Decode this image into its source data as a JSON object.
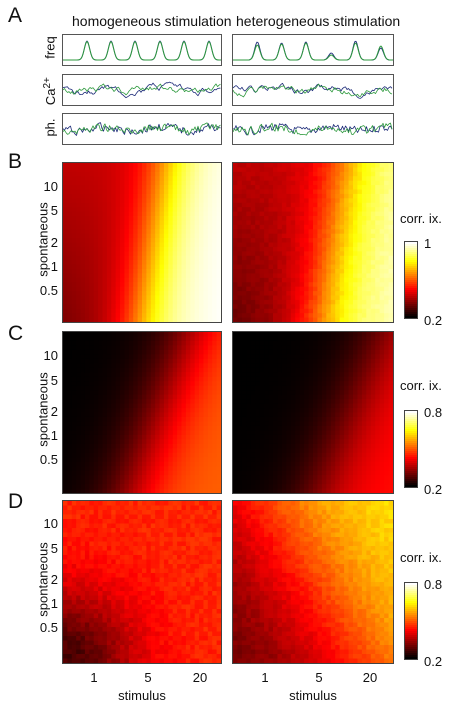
{
  "panels": {
    "a": "A",
    "b": "B",
    "c": "C",
    "d": "D"
  },
  "column_titles": [
    "homogeneous stimulation",
    "heterogeneous stimulation"
  ],
  "trace_rows": [
    "freq",
    "Ca",
    "ph."
  ],
  "trace_row_ca_sup": "2+",
  "heatmap_ylabel": "spontaneous",
  "heatmap_xlabel": "stimulus",
  "y_ticks": [
    "10",
    "5",
    "2",
    "1",
    "0.5"
  ],
  "x_ticks": [
    "1",
    "5",
    "20"
  ],
  "colorbars": [
    {
      "title": "corr. ix.",
      "max": "1",
      "min": "0.2"
    },
    {
      "title": "corr. ix.",
      "max": "0.8",
      "min": "0.2"
    },
    {
      "title": "corr. ix.",
      "max": "0.8",
      "min": "0.2"
    }
  ],
  "colors": {
    "trace_green": "#2e9a3e",
    "trace_blue": "#1c2a78",
    "colormap": "hot"
  },
  "chart_data": [
    {
      "type": "line",
      "panel": "A",
      "rows": [
        "freq",
        "Ca2+",
        "ph."
      ],
      "columns": [
        "homogeneous stimulation",
        "heterogeneous stimulation"
      ],
      "series_colors": [
        "#2e9a3e",
        "#1c2a78"
      ],
      "peaks_per_trace": 6
    },
    {
      "type": "heatmap",
      "panel": "B",
      "xlabel": "stimulus",
      "ylabel": "spontaneous",
      "x_scale": "log",
      "y_scale": "log",
      "colorbar_title": "corr. ix.",
      "clim": [
        0.2,
        1
      ]
    },
    {
      "type": "heatmap",
      "panel": "C",
      "xlabel": "stimulus",
      "ylabel": "spontaneous",
      "x_scale": "log",
      "y_scale": "log",
      "colorbar_title": "corr. ix.",
      "clim": [
        0.2,
        0.8
      ]
    },
    {
      "type": "heatmap",
      "panel": "D",
      "xlabel": "stimulus",
      "ylabel": "spontaneous",
      "x_scale": "log",
      "y_scale": "log",
      "colorbar_title": "corr. ix.",
      "clim": [
        0.2,
        0.8
      ]
    }
  ]
}
